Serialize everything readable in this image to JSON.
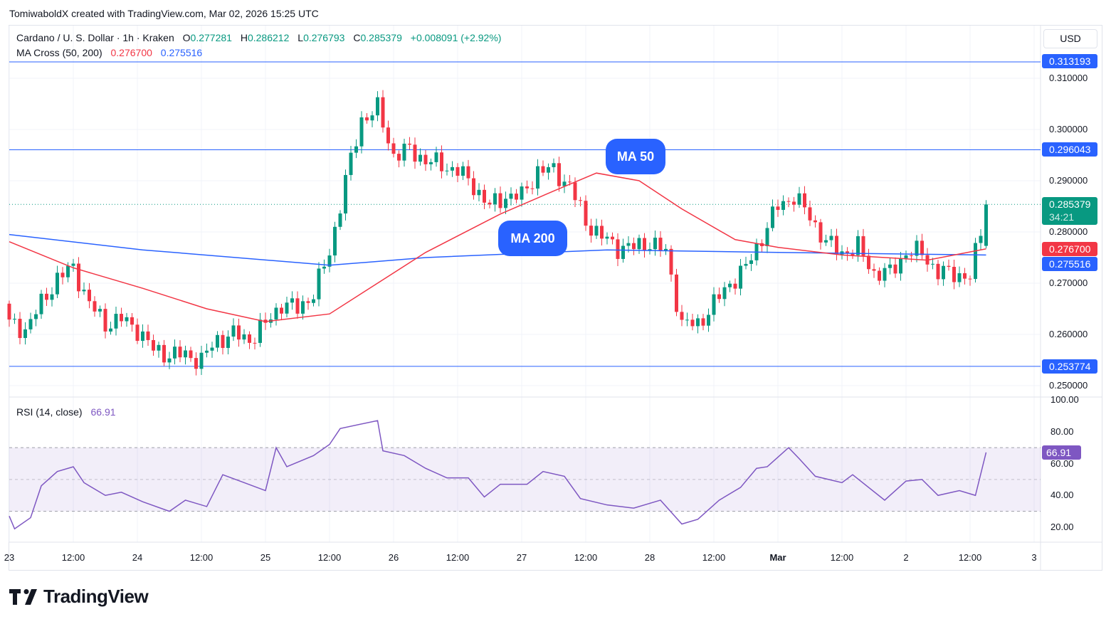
{
  "credit": "TomiwaboldX created with TradingView.com, Mar 02, 2026 15:25 UTC",
  "legend": {
    "symbol": "Cardano / U. S. Dollar · 1h · Kraken",
    "o_label": "O",
    "o": "0.277281",
    "h_label": "H",
    "h": "0.286212",
    "l_label": "L",
    "l": "0.276793",
    "c_label": "C",
    "c": "0.285379",
    "change": "+0.008091 (+2.92%)",
    "ma_title": "MA Cross (50, 200)",
    "ma50": "0.276700",
    "ma200": "0.275516",
    "rsi_title": "RSI (14, close)",
    "rsi": "66.91"
  },
  "currency": "USD",
  "bubbles": {
    "ma50": "MA 50",
    "ma200": "MA 200"
  },
  "price_labels": {
    "high_line": "0.313193",
    "mid_line": "0.296043",
    "last": "0.285379",
    "countdown": "34:21",
    "ma50": "0.276700",
    "ma200": "0.275516",
    "low_line": "0.253774",
    "rsi": "66.91"
  },
  "brand": "TradingView",
  "colors": {
    "up": "#089981",
    "down": "#f23645",
    "ma50": "#f23645",
    "ma200": "#2962ff",
    "rsi": "#7e57c2",
    "hline": "#2962ff"
  },
  "chart_data": {
    "type": "candlestick",
    "title": "Cardano / U. S. Dollar · 1h · Kraken",
    "interval_hours": 1,
    "close_anchor_step_hours": 3,
    "close_anchors": [
      0.262,
      0.261,
      0.266,
      0.271,
      0.273,
      0.266,
      0.262,
      0.263,
      0.261,
      0.257,
      0.256,
      0.256,
      0.255,
      0.259,
      0.26,
      0.259,
      0.262,
      0.266,
      0.265,
      0.268,
      0.276,
      0.29,
      0.302,
      0.304,
      0.295,
      0.296,
      0.294,
      0.293,
      0.292,
      0.289,
      0.285,
      0.287,
      0.287,
      0.292,
      0.292,
      0.289,
      0.282,
      0.279,
      0.277,
      0.277,
      0.278,
      0.276,
      0.262,
      0.262,
      0.266,
      0.27,
      0.273,
      0.279,
      0.285,
      0.287,
      0.283,
      0.278,
      0.276,
      0.277,
      0.272,
      0.272,
      0.276,
      0.276,
      0.272,
      0.272,
      0.271,
      0.285
    ],
    "last_candle": {
      "o": 0.277281,
      "h": 0.286212,
      "l": 0.276793,
      "c": 0.285379
    },
    "horizontal_lines": [
      0.313193,
      0.296043,
      0.253774
    ],
    "ma50": [
      [
        0,
        0.2781
      ],
      [
        12,
        0.273
      ],
      [
        25,
        0.269
      ],
      [
        37,
        0.265
      ],
      [
        48,
        0.2625
      ],
      [
        60,
        0.264
      ],
      [
        69,
        0.27
      ],
      [
        78,
        0.276
      ],
      [
        92,
        0.2835
      ],
      [
        102,
        0.288
      ],
      [
        110,
        0.2915
      ],
      [
        118,
        0.29
      ],
      [
        126,
        0.2845
      ],
      [
        136,
        0.2785
      ],
      [
        144,
        0.277
      ],
      [
        156,
        0.2755
      ],
      [
        172,
        0.2745
      ],
      [
        183,
        0.2767
      ]
    ],
    "ma200": [
      [
        0,
        0.2795
      ],
      [
        25,
        0.2765
      ],
      [
        60,
        0.2735
      ],
      [
        78,
        0.275
      ],
      [
        112,
        0.2765
      ],
      [
        144,
        0.276
      ],
      [
        183,
        0.2755
      ]
    ],
    "rsi": [
      [
        0,
        27
      ],
      [
        1,
        19
      ],
      [
        4,
        26
      ],
      [
        6,
        46
      ],
      [
        9,
        55
      ],
      [
        12,
        58
      ],
      [
        14,
        48
      ],
      [
        18,
        40
      ],
      [
        21,
        42
      ],
      [
        25,
        36
      ],
      [
        30,
        30
      ],
      [
        33,
        37
      ],
      [
        37,
        33
      ],
      [
        40,
        53
      ],
      [
        44,
        48
      ],
      [
        48,
        43
      ],
      [
        50,
        70
      ],
      [
        52,
        58
      ],
      [
        57,
        65
      ],
      [
        60,
        72
      ],
      [
        62,
        82
      ],
      [
        69,
        87
      ],
      [
        70,
        68
      ],
      [
        74,
        65
      ],
      [
        78,
        57
      ],
      [
        82,
        51
      ],
      [
        86,
        51
      ],
      [
        89,
        39
      ],
      [
        92,
        47
      ],
      [
        97,
        47
      ],
      [
        100,
        55
      ],
      [
        104,
        52
      ],
      [
        107,
        38
      ],
      [
        112,
        34
      ],
      [
        117,
        32
      ],
      [
        122,
        37
      ],
      [
        126,
        22
      ],
      [
        129,
        25
      ],
      [
        133,
        37
      ],
      [
        137,
        45
      ],
      [
        140,
        57
      ],
      [
        142,
        58
      ],
      [
        146,
        70
      ],
      [
        148,
        63
      ],
      [
        151,
        52
      ],
      [
        156,
        48
      ],
      [
        158,
        53
      ],
      [
        164,
        37
      ],
      [
        168,
        49
      ],
      [
        171,
        50
      ],
      [
        174,
        40
      ],
      [
        178,
        43
      ],
      [
        181,
        40
      ],
      [
        183,
        67
      ]
    ],
    "price_ticks": [
      "0.310000",
      "0.300000",
      "0.290000",
      "0.280000",
      "0.270000",
      "0.260000",
      "0.250000"
    ],
    "price_tick_values": [
      0.31,
      0.3,
      0.29,
      0.28,
      0.27,
      0.26,
      0.25
    ],
    "rsi_ticks": [
      "100.00",
      "80.00",
      "60.00",
      "40.00",
      "20.00"
    ],
    "rsi_tick_values": [
      100,
      80,
      60,
      40,
      20
    ],
    "rsi_bands": [
      70,
      50,
      30
    ],
    "time_ticks": [
      {
        "t": 0,
        "label": "23"
      },
      {
        "t": 12,
        "label": "12:00"
      },
      {
        "t": 24,
        "label": "24"
      },
      {
        "t": 36,
        "label": "12:00"
      },
      {
        "t": 48,
        "label": "25"
      },
      {
        "t": 60,
        "label": "12:00"
      },
      {
        "t": 72,
        "label": "26"
      },
      {
        "t": 84,
        "label": "12:00"
      },
      {
        "t": 96,
        "label": "27"
      },
      {
        "t": 108,
        "label": "12:00"
      },
      {
        "t": 120,
        "label": "28"
      },
      {
        "t": 132,
        "label": "12:00"
      },
      {
        "t": 144,
        "label": "Mar"
      },
      {
        "t": 156,
        "label": "12:00"
      },
      {
        "t": 168,
        "label": "2"
      },
      {
        "t": 180,
        "label": "12:00"
      },
      {
        "t": 192,
        "label": "3"
      }
    ]
  }
}
